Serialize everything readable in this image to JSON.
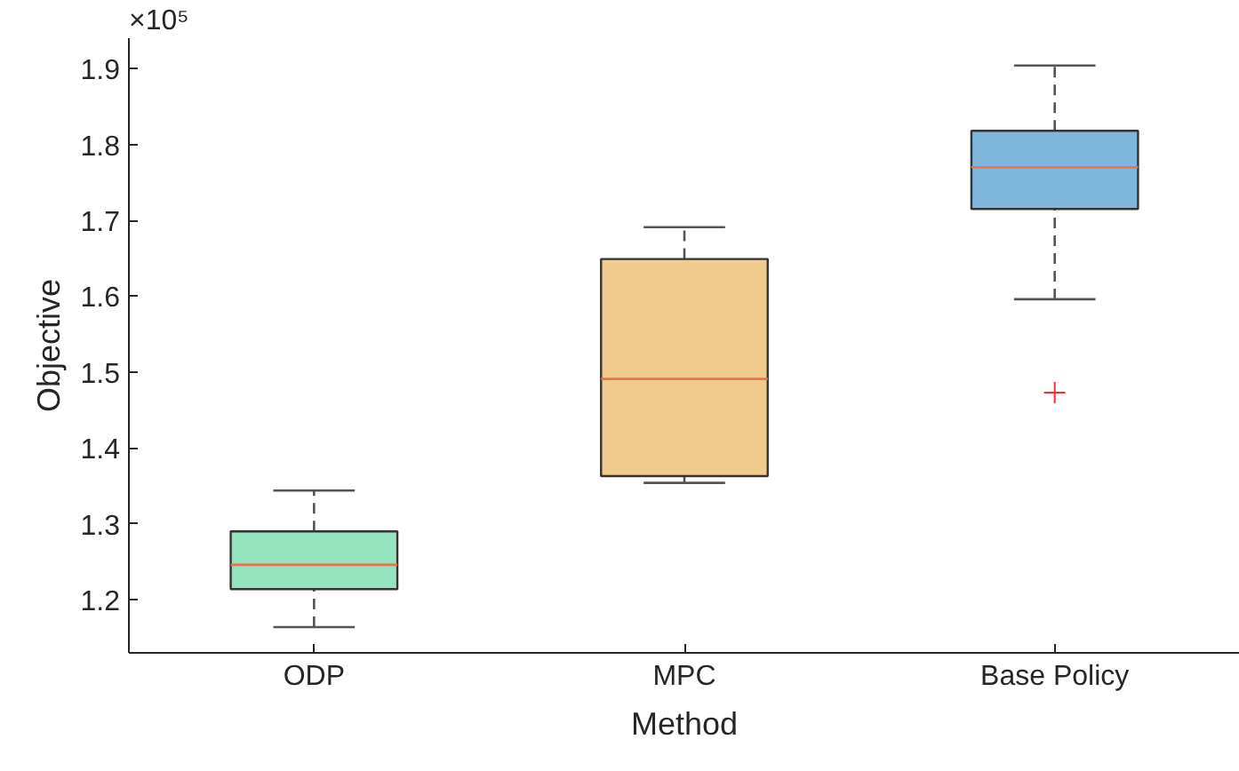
{
  "chart_data": {
    "type": "box",
    "xlabel": "Method",
    "ylabel": "Objective",
    "annotations": [
      "×10⁵"
    ],
    "categories": [
      "ODP",
      "MPC",
      "Base Policy"
    ],
    "colors": [
      "#96e3bf",
      "#f1cb8d",
      "#7eb6dc"
    ],
    "boxes": [
      {
        "low": 1.164,
        "q1": 1.214,
        "median": 1.246,
        "q3": 1.29,
        "high": 1.344
      },
      {
        "low": 1.354,
        "q1": 1.363,
        "median": 1.491,
        "q3": 1.649,
        "high": 1.691
      },
      {
        "low": 1.596,
        "q1": 1.715,
        "median": 1.77,
        "q3": 1.818,
        "high": 1.904,
        "outliers": [
          1.473
        ]
      }
    ],
    "ylim": [
      1.13,
      1.94
    ],
    "yticks": [
      1.2,
      1.3,
      1.4,
      1.5,
      1.6,
      1.7,
      1.8,
      1.9
    ]
  }
}
